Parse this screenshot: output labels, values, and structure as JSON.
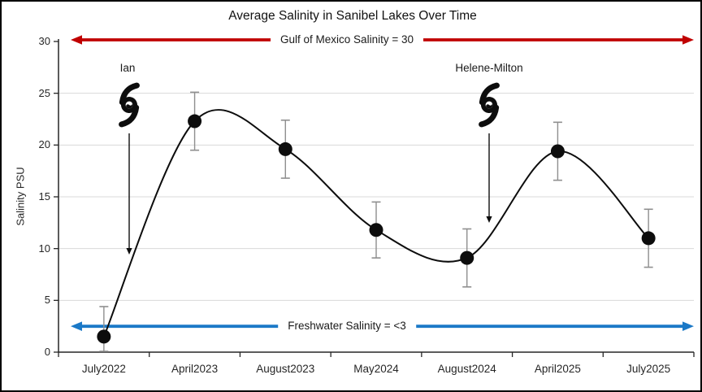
{
  "chart_data": {
    "type": "line",
    "title": "Average Salinity in Sanibel Lakes Over Time",
    "xlabel": "",
    "ylabel": "Salinity PSU",
    "ylim": [
      0,
      30
    ],
    "yticks": [
      0,
      5,
      10,
      15,
      20,
      25,
      30
    ],
    "grid": "horizontal",
    "line_style": "smooth",
    "marker": "filled-circle",
    "legend": "none",
    "categories": [
      "July2022",
      "April2023",
      "August2023",
      "May2024",
      "August2024",
      "April2025",
      "July2025"
    ],
    "series": [
      {
        "name": "Average Salinity",
        "values": [
          1.5,
          22.3,
          19.6,
          11.8,
          9.1,
          19.4,
          11.0
        ],
        "errors": [
          2.9,
          2.8,
          2.8,
          2.7,
          2.8,
          2.8,
          2.8
        ]
      }
    ],
    "reference_lines": [
      {
        "label": "Gulf of Mexico Salinity = 30",
        "value": 30,
        "color": "#C00000",
        "style": "double-arrow"
      },
      {
        "label": "Freshwater Salinity = <3",
        "value": 2.5,
        "color": "#1B79C7",
        "style": "double-arrow"
      }
    ],
    "annotations": [
      {
        "label": "Ian",
        "icon": "hurricane-icon"
      },
      {
        "label": "Helene-Milton",
        "icon": "hurricane-icon"
      }
    ],
    "colors": {
      "curve": "#0d0d0d",
      "marker": "#0d0d0d",
      "error_bar": "#8f8f8f",
      "gridline": "#d9d9d9",
      "axis": "#262626"
    }
  }
}
